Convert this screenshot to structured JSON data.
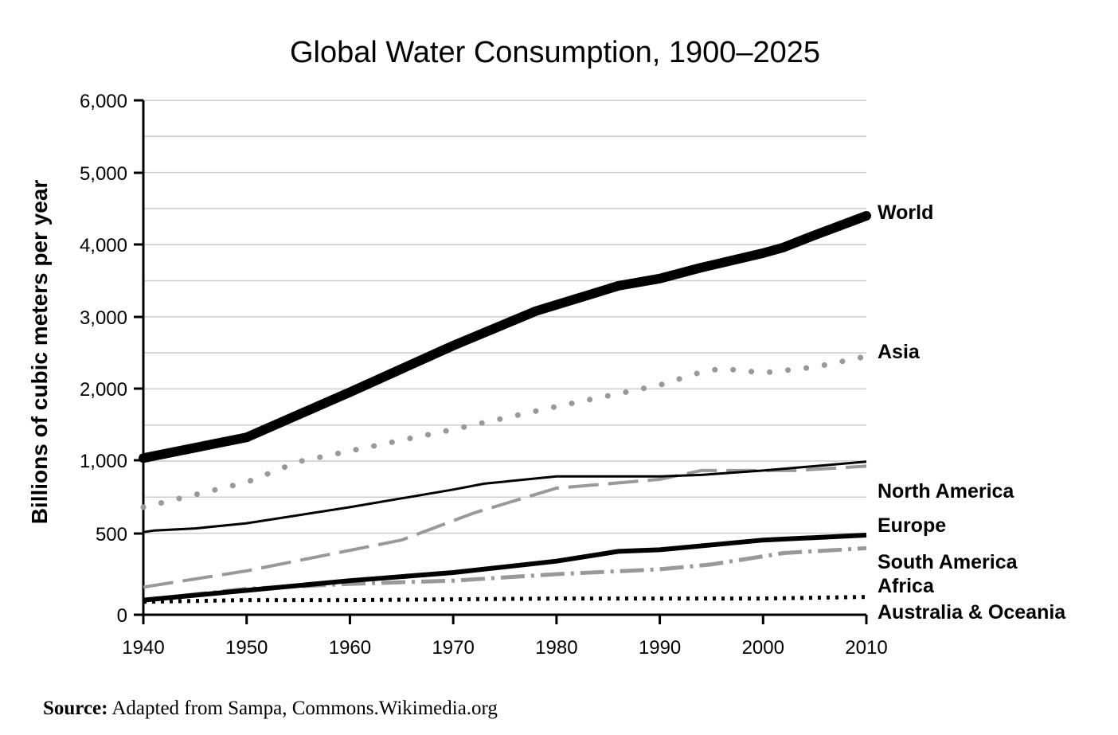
{
  "chart_data": {
    "type": "line",
    "title": "Global Water Consumption, 1900–2025",
    "xlabel": "",
    "ylabel": "Billions of cubic meters per year",
    "x_ticks": [
      "1940",
      "1950",
      "1960",
      "1970",
      "1980",
      "1990",
      "2000",
      "2010"
    ],
    "y_ticks": [
      "0",
      "500",
      "1,000",
      "2,000",
      "3,000",
      "4,000",
      "5,000",
      "6,000"
    ],
    "y_tick_values": [
      0,
      500,
      1000,
      2000,
      3000,
      4000,
      5000,
      6000
    ],
    "y_scale_note": "axis is non-linear: 0–1,000 spans two gridline steps of 500-label each, then 1,000 per step",
    "grid": true,
    "series": [
      {
        "name": "World",
        "style": "solid-thick",
        "color": "#000000",
        "x": [
          1940,
          1950,
          1960,
          1970,
          1978,
          1986,
          1990,
          1994,
          2000,
          2002,
          2005,
          2010
        ],
        "y": [
          1030,
          1320,
          1950,
          2600,
          3080,
          3430,
          3530,
          3680,
          3880,
          3960,
          4130,
          4400
        ]
      },
      {
        "name": "Asia",
        "style": "dotted",
        "color": "#999999",
        "x": [
          1940,
          1950,
          1955,
          1960,
          1970,
          1980,
          1990,
          1994,
          1996,
          2000,
          2005,
          2010
        ],
        "y": [
          680,
          850,
          990,
          1130,
          1430,
          1750,
          2050,
          2230,
          2280,
          2220,
          2300,
          2450
        ]
      },
      {
        "name": "North America",
        "style": "solid",
        "color": "#000000",
        "x": [
          1940,
          1941,
          1945,
          1950,
          1960,
          1970,
          1973,
          1980,
          1990,
          1994,
          2000,
          2010
        ],
        "y": [
          510,
          520,
          535,
          570,
          680,
          800,
          840,
          890,
          890,
          900,
          930,
          990
        ]
      },
      {
        "name": "Europe",
        "style": "dashed",
        "color": "#999999",
        "x": [
          1940,
          1950,
          1965,
          1972,
          1980,
          1990,
          1994,
          2000,
          2003,
          2010
        ],
        "y": [
          170,
          270,
          460,
          640,
          810,
          870,
          930,
          930,
          930,
          960
        ]
      },
      {
        "name": "South America",
        "style": "solid-medium",
        "color": "#000000",
        "x": [
          1940,
          1950,
          1960,
          1970,
          1980,
          1986,
          1990,
          1995,
          2000,
          2010
        ],
        "y": [
          90,
          150,
          210,
          260,
          330,
          390,
          400,
          430,
          460,
          490
        ]
      },
      {
        "name": "Africa",
        "style": "dash-dot",
        "color": "#999999",
        "x": [
          1940,
          1950,
          1960,
          1970,
          1980,
          1990,
          1995,
          2000,
          2002,
          2010
        ],
        "y": [
          90,
          160,
          190,
          210,
          250,
          280,
          310,
          360,
          380,
          410
        ]
      },
      {
        "name": "Australia & Oceania",
        "style": "dotted-dense",
        "color": "#000000",
        "x": [
          1940,
          1950,
          1960,
          1970,
          1980,
          1990,
          2000,
          2010
        ],
        "y": [
          80,
          90,
          90,
          95,
          100,
          100,
          100,
          110
        ]
      }
    ],
    "xlim": [
      1940,
      2010
    ],
    "ylim": [
      0,
      6000
    ]
  },
  "source": {
    "label": "Source:",
    "text": "Adapted from Sampa, Commons.Wikimedia.org"
  }
}
